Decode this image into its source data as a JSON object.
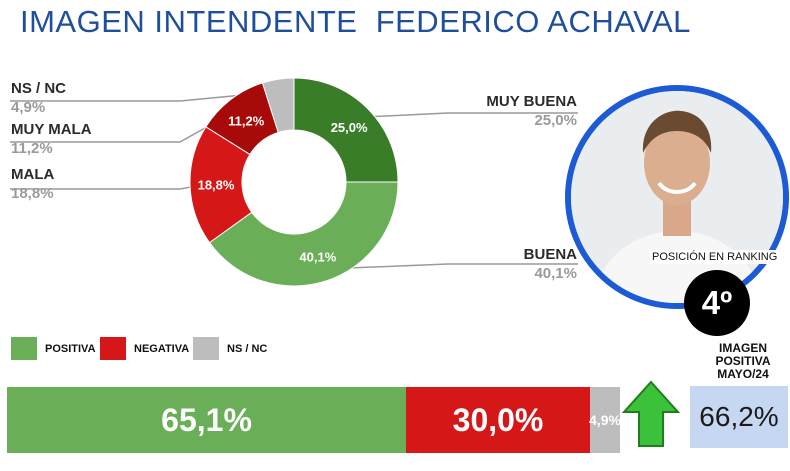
{
  "title": "IMAGEN INTENDENTE  FEDERICO ACHAVAL",
  "colors": {
    "title": "#1f4f9c",
    "muy_buena": "#3a7d28",
    "buena": "#6aae58",
    "mala": "#d61717",
    "muy_mala": "#a80a0a",
    "ns_nc": "#bdbdbd",
    "circle_border": "#1c5ad6",
    "imagen_box": "#c6d8f1"
  },
  "labels": {
    "ns_nc": {
      "name": "NS / NC",
      "value": "4,9%"
    },
    "muy_mala": {
      "name": "MUY MALA",
      "value": "11,2%"
    },
    "mala": {
      "name": "MALA",
      "value": "18,8%"
    },
    "muy_buena": {
      "name": "MUY BUENA",
      "value": "25,0%"
    },
    "buena": {
      "name": "BUENA",
      "value": "40,1%"
    }
  },
  "ranking": {
    "label": "POSICIÓN EN RANKING",
    "position": "4º"
  },
  "legend": [
    {
      "label": "POSITIVA",
      "color": "#6aae58"
    },
    {
      "label": "NEGATIVA",
      "color": "#d61717"
    },
    {
      "label": "NS / NC",
      "color": "#bdbdbd"
    }
  ],
  "imagen_positiva": {
    "lines": [
      "IMAGEN",
      "POSITIVA",
      "MAYO/24"
    ],
    "value": "66,2%"
  },
  "icons": {
    "photo": "portrait-photo",
    "trend": "green-up-arrow-icon"
  },
  "chart_data": [
    {
      "type": "pie",
      "title": "IMAGEN INTENDENTE  FEDERICO ACHAVAL",
      "categories": [
        "MUY BUENA",
        "BUENA",
        "MALA",
        "MUY MALA",
        "NS / NC"
      ],
      "values": [
        25.0,
        40.1,
        18.8,
        11.2,
        4.9
      ],
      "value_labels": [
        "25,0%",
        "40,1%",
        "18,8%",
        "11,2%",
        "4,9%"
      ],
      "colors": [
        "#3a7d28",
        "#6aae58",
        "#d61717",
        "#a80a0a",
        "#bdbdbd"
      ]
    },
    {
      "type": "bar",
      "orientation": "horizontal-stacked",
      "categories": [
        "POSITIVA",
        "NEGATIVA",
        "NS / NC"
      ],
      "values": [
        65.1,
        30.0,
        4.9
      ],
      "value_labels": [
        "65,1%",
        "30,0%",
        "4,9%"
      ],
      "colors": [
        "#6aae58",
        "#d61717",
        "#bdbdbd"
      ]
    }
  ]
}
